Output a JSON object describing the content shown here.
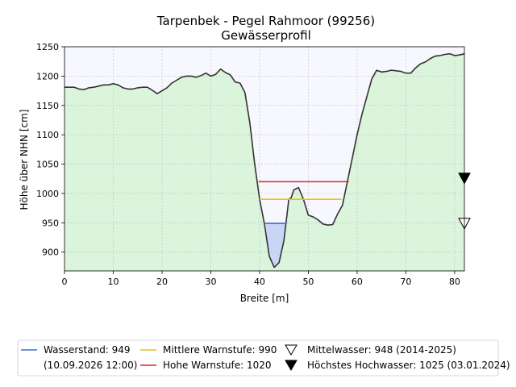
{
  "chart_data": {
    "type": "area",
    "title": "Tarpenbek - Pegel Rahmoor (99256)",
    "subtitle": "Gewässerprofil",
    "xlabel": "Breite [m]",
    "ylabel": "Höhe über NHN [cm]",
    "xlim": [
      0,
      82
    ],
    "ylim": [
      868,
      1250
    ],
    "x_ticks": [
      0,
      10,
      20,
      30,
      40,
      50,
      60,
      70,
      80
    ],
    "y_ticks": [
      900,
      950,
      1000,
      1050,
      1100,
      1150,
      1200,
      1250
    ],
    "grid": true,
    "legend_position": "bottom",
    "colors": {
      "terrain_fill": "#daf5dc",
      "terrain_line": "#333333",
      "sky": "#f7f7fe",
      "water_fill": "#c8d6f5",
      "wasserstand": "#3d6fd2",
      "mittlere_warnstufe": "#f2bd1a",
      "hohe_warnstufe": "#d62a2a"
    },
    "profile": {
      "name": "Gewässerprofil",
      "x": [
        0,
        2,
        3,
        4,
        5,
        6,
        7,
        8,
        9,
        10,
        11,
        12,
        13,
        14,
        15,
        16,
        17,
        18,
        19,
        20,
        21,
        22,
        23,
        24,
        25,
        26,
        27,
        28,
        29,
        30,
        31,
        32,
        33,
        34,
        35,
        36,
        37,
        38,
        39,
        40,
        41,
        42,
        43,
        44,
        45,
        46,
        46.5,
        47,
        47.5,
        48,
        48.5,
        49,
        50,
        51,
        52,
        53,
        54,
        55,
        56,
        57,
        58,
        59,
        60,
        61,
        62,
        63,
        64,
        65,
        66,
        67,
        68,
        69,
        70,
        71,
        72,
        73,
        74,
        75,
        76,
        77,
        78,
        79,
        80,
        81,
        82
      ],
      "y": [
        1181,
        1181,
        1178,
        1177,
        1180,
        1181,
        1183,
        1185,
        1185,
        1187,
        1185,
        1180,
        1178,
        1178,
        1180,
        1181,
        1181,
        1176,
        1170,
        1175,
        1180,
        1188,
        1193,
        1198,
        1200,
        1200,
        1198,
        1201,
        1205,
        1200,
        1203,
        1212,
        1206,
        1202,
        1190,
        1188,
        1172,
        1120,
        1050,
        990,
        948,
        893,
        874,
        882,
        920,
        990,
        993,
        1006,
        1008,
        1010,
        1000,
        990,
        963,
        960,
        955,
        948,
        946,
        947,
        965,
        980,
        1020,
        1060,
        1100,
        1135,
        1165,
        1195,
        1210,
        1207,
        1208,
        1210,
        1209,
        1208,
        1205,
        1205,
        1214,
        1221,
        1224,
        1230,
        1234,
        1235,
        1237,
        1238,
        1235,
        1236,
        1238
      ]
    },
    "wasserstand": {
      "value": 949,
      "x_range": [
        41.2,
        45.5
      ]
    },
    "mittlere_warnstufe": {
      "value": 990,
      "x_range": [
        40.0,
        56.8
      ]
    },
    "hohe_warnstufe": {
      "value": 1020,
      "x_range": [
        39.8,
        58.3
      ]
    },
    "mittelwasser": {
      "value": 948,
      "x": 82
    },
    "hoechstes_hochwasser": {
      "value": 1025,
      "x": 82
    },
    "legend": {
      "wasserstand": "Wasserstand: 949",
      "wasserstand_date": "(10.09.2026 12:00)",
      "mittlere_warnstufe": "Mittlere Warnstufe: 990",
      "hohe_warnstufe": "Hohe Warnstufe: 1020",
      "mittelwasser": "Mittelwasser: 948 (2014-2025)",
      "hoechstes_hochwasser": "Höchstes Hochwasser: 1025 (03.01.2024)"
    }
  }
}
